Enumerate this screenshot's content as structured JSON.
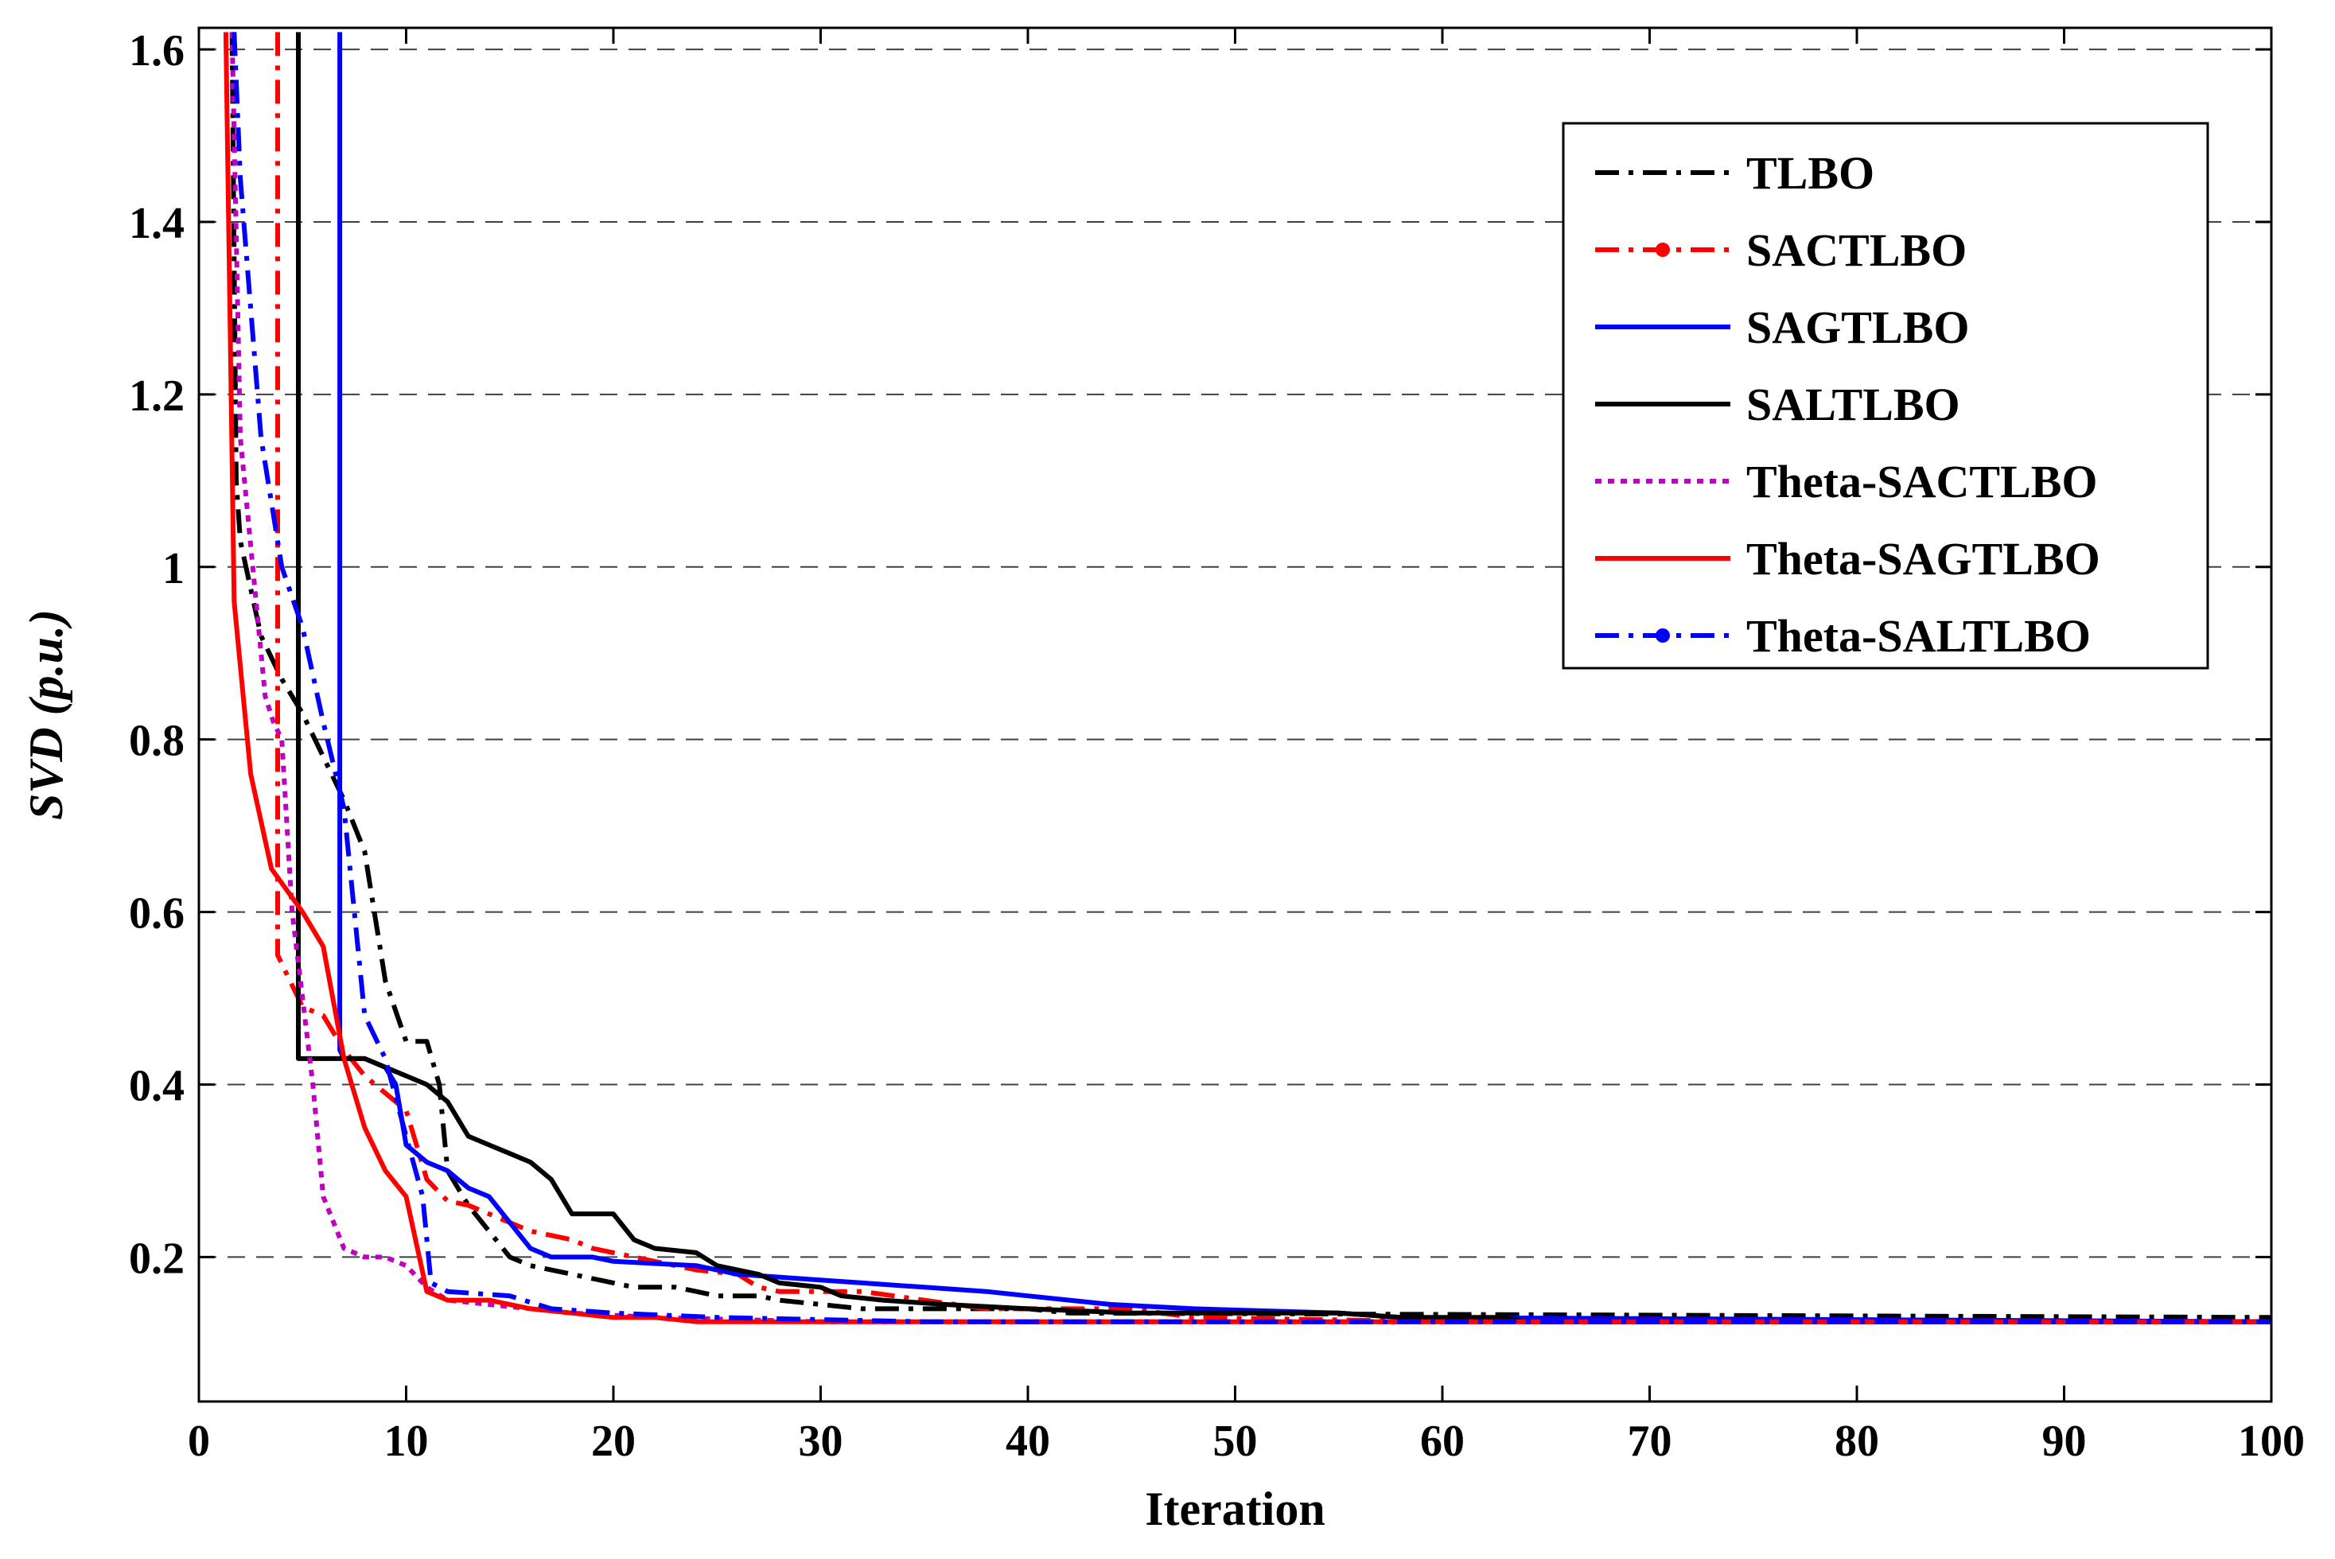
{
  "chart_data": {
    "type": "line",
    "title": "",
    "xlabel": "Iteration",
    "ylabel": "SVD (p.u.)",
    "xlim": [
      0,
      100
    ],
    "ylim": [
      0.0325,
      1.625
    ],
    "xticks": [
      0,
      10,
      20,
      30,
      40,
      50,
      60,
      70,
      80,
      90,
      100
    ],
    "xtick_labels": [
      "0",
      "10",
      "20",
      "30",
      "40",
      "50",
      "60",
      "70",
      "80",
      "90",
      "100"
    ],
    "yticks": [
      0.2,
      0.4,
      0.6,
      0.8,
      1.0,
      1.2,
      1.4,
      1.6
    ],
    "ytick_labels": [
      "0.2",
      "0.4",
      "0.6",
      "0.8",
      "1",
      "1.2",
      "1.4",
      "1.6"
    ],
    "grid": "horizontal dashed",
    "legend_position": "top-right",
    "series": [
      {
        "name": "TLBO",
        "color": "#000000",
        "style": "dashdot",
        "points": [
          [
            1.6,
            1.62
          ],
          [
            1.8,
            1.1
          ],
          [
            2,
            1.03
          ],
          [
            3,
            0.92
          ],
          [
            4,
            0.87
          ],
          [
            5,
            0.83
          ],
          [
            6,
            0.78
          ],
          [
            7,
            0.73
          ],
          [
            8,
            0.67
          ],
          [
            9,
            0.52
          ],
          [
            10,
            0.45
          ],
          [
            11,
            0.45
          ],
          [
            11.6,
            0.4
          ],
          [
            12,
            0.3
          ],
          [
            13,
            0.26
          ],
          [
            14,
            0.23
          ],
          [
            15,
            0.2
          ],
          [
            16,
            0.19
          ],
          [
            17,
            0.185
          ],
          [
            18,
            0.18
          ],
          [
            19,
            0.175
          ],
          [
            20,
            0.17
          ],
          [
            21,
            0.165
          ],
          [
            23,
            0.165
          ],
          [
            24,
            0.16
          ],
          [
            25,
            0.155
          ],
          [
            27,
            0.155
          ],
          [
            28,
            0.15
          ],
          [
            30,
            0.145
          ],
          [
            32,
            0.14
          ],
          [
            40,
            0.14
          ],
          [
            42,
            0.135
          ],
          [
            100,
            0.13
          ]
        ]
      },
      {
        "name": "SACTLBO",
        "color": "#ff0000",
        "style": "dashdot-dot",
        "points": [
          [
            3.8,
            1.62
          ],
          [
            3.8,
            0.55
          ],
          [
            4.2,
            0.53
          ],
          [
            5,
            0.49
          ],
          [
            6,
            0.48
          ],
          [
            7,
            0.44
          ],
          [
            8,
            0.41
          ],
          [
            9,
            0.39
          ],
          [
            10,
            0.37
          ],
          [
            10.5,
            0.33
          ],
          [
            11,
            0.29
          ],
          [
            12,
            0.265
          ],
          [
            13,
            0.26
          ],
          [
            14,
            0.25
          ],
          [
            15,
            0.24
          ],
          [
            16,
            0.23
          ],
          [
            17,
            0.225
          ],
          [
            18,
            0.22
          ],
          [
            19,
            0.21
          ],
          [
            21,
            0.2
          ],
          [
            23,
            0.19
          ],
          [
            24,
            0.185
          ],
          [
            26,
            0.18
          ],
          [
            27,
            0.165
          ],
          [
            28,
            0.16
          ],
          [
            32,
            0.16
          ],
          [
            35,
            0.15
          ],
          [
            38,
            0.14
          ],
          [
            45,
            0.14
          ],
          [
            48,
            0.13
          ],
          [
            60,
            0.125
          ],
          [
            100,
            0.125
          ]
        ]
      },
      {
        "name": "SAGTLBO",
        "color": "#0000ff",
        "style": "solid",
        "points": [
          [
            6.8,
            1.62
          ],
          [
            6.8,
            0.44
          ],
          [
            7,
            0.43
          ],
          [
            8,
            0.43
          ],
          [
            9,
            0.42
          ],
          [
            9.5,
            0.4
          ],
          [
            10,
            0.33
          ],
          [
            11,
            0.31
          ],
          [
            12,
            0.3
          ],
          [
            13,
            0.28
          ],
          [
            14,
            0.27
          ],
          [
            15,
            0.24
          ],
          [
            16,
            0.21
          ],
          [
            17,
            0.2
          ],
          [
            18,
            0.2
          ],
          [
            19,
            0.2
          ],
          [
            20,
            0.195
          ],
          [
            24,
            0.19
          ],
          [
            26,
            0.18
          ],
          [
            29,
            0.175
          ],
          [
            32,
            0.17
          ],
          [
            35,
            0.165
          ],
          [
            38,
            0.16
          ],
          [
            40,
            0.155
          ],
          [
            42,
            0.15
          ],
          [
            44,
            0.145
          ],
          [
            48,
            0.14
          ],
          [
            55,
            0.135
          ],
          [
            58,
            0.13
          ],
          [
            100,
            0.125
          ]
        ]
      },
      {
        "name": "SALTLBO",
        "color": "#000000",
        "style": "solid",
        "points": [
          [
            4.8,
            1.62
          ],
          [
            4.8,
            0.43
          ],
          [
            6,
            0.43
          ],
          [
            7,
            0.43
          ],
          [
            8,
            0.43
          ],
          [
            9,
            0.42
          ],
          [
            10,
            0.41
          ],
          [
            11,
            0.4
          ],
          [
            12,
            0.38
          ],
          [
            13,
            0.34
          ],
          [
            14,
            0.33
          ],
          [
            15,
            0.32
          ],
          [
            16,
            0.31
          ],
          [
            17,
            0.29
          ],
          [
            18,
            0.25
          ],
          [
            19,
            0.25
          ],
          [
            20,
            0.25
          ],
          [
            21,
            0.22
          ],
          [
            22,
            0.21
          ],
          [
            24,
            0.205
          ],
          [
            25,
            0.19
          ],
          [
            27,
            0.18
          ],
          [
            28,
            0.17
          ],
          [
            30,
            0.165
          ],
          [
            31,
            0.155
          ],
          [
            33,
            0.15
          ],
          [
            36,
            0.145
          ],
          [
            40,
            0.14
          ],
          [
            45,
            0.135
          ],
          [
            55,
            0.135
          ],
          [
            58,
            0.13
          ],
          [
            63,
            0.13
          ],
          [
            64,
            0.125
          ],
          [
            100,
            0.125
          ]
        ]
      },
      {
        "name": "Theta-SACTLBO",
        "color": "#c000c0",
        "style": "dotted",
        "points": [
          [
            1.6,
            1.62
          ],
          [
            2,
            1.15
          ],
          [
            2.8,
            0.95
          ],
          [
            3.2,
            0.85
          ],
          [
            3.6,
            0.82
          ],
          [
            4,
            0.8
          ],
          [
            4.5,
            0.6
          ],
          [
            5,
            0.5
          ],
          [
            5.5,
            0.4
          ],
          [
            6,
            0.27
          ],
          [
            7,
            0.21
          ],
          [
            8,
            0.2
          ],
          [
            9,
            0.2
          ],
          [
            10,
            0.19
          ],
          [
            11,
            0.165
          ],
          [
            12,
            0.15
          ],
          [
            14,
            0.145
          ],
          [
            16,
            0.14
          ],
          [
            18,
            0.135
          ],
          [
            22,
            0.13
          ],
          [
            30,
            0.125
          ],
          [
            100,
            0.125
          ]
        ]
      },
      {
        "name": "Theta-SAGTLBO",
        "color": "#ff0000",
        "style": "solid",
        "points": [
          [
            1.3,
            1.62
          ],
          [
            1.7,
            0.96
          ],
          [
            2.5,
            0.76
          ],
          [
            3.5,
            0.65
          ],
          [
            5,
            0.6
          ],
          [
            6,
            0.56
          ],
          [
            7,
            0.43
          ],
          [
            8,
            0.35
          ],
          [
            9,
            0.3
          ],
          [
            10,
            0.27
          ],
          [
            11,
            0.16
          ],
          [
            12,
            0.15
          ],
          [
            14,
            0.15
          ],
          [
            16,
            0.14
          ],
          [
            18,
            0.135
          ],
          [
            20,
            0.13
          ],
          [
            22,
            0.13
          ],
          [
            24,
            0.125
          ],
          [
            100,
            0.125
          ]
        ]
      },
      {
        "name": "Theta-SALTLBO",
        "color": "#0000ff",
        "style": "dashdot-dot",
        "points": [
          [
            1.7,
            1.62
          ],
          [
            2,
            1.45
          ],
          [
            3,
            1.15
          ],
          [
            4,
            1.0
          ],
          [
            5,
            0.93
          ],
          [
            6,
            0.82
          ],
          [
            7,
            0.72
          ],
          [
            8,
            0.48
          ],
          [
            9,
            0.43
          ],
          [
            10,
            0.34
          ],
          [
            10.8,
            0.27
          ],
          [
            11.2,
            0.17
          ],
          [
            12,
            0.16
          ],
          [
            15,
            0.155
          ],
          [
            17,
            0.14
          ],
          [
            20,
            0.135
          ],
          [
            25,
            0.13
          ],
          [
            35,
            0.125
          ],
          [
            100,
            0.125
          ]
        ]
      }
    ]
  }
}
